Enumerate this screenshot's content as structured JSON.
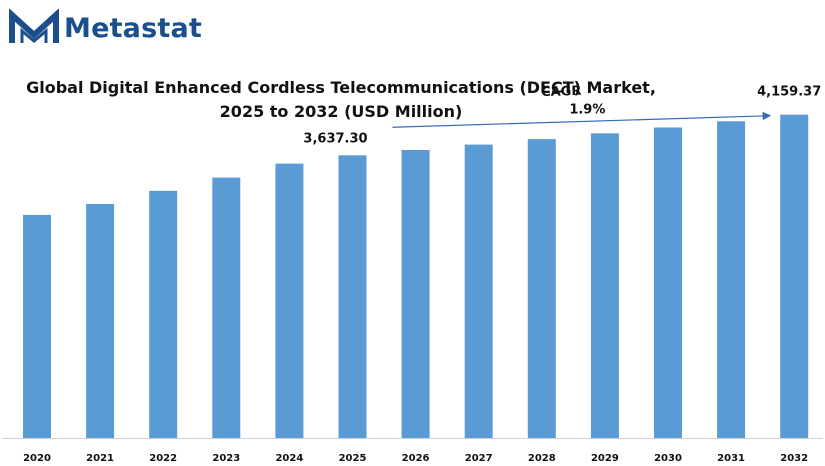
{
  "brand": {
    "name": "Metastat"
  },
  "title_line1": "Global Digital Enhanced Cordless Telecommunications (DECT) Market,",
  "title_line2": "2025 to 2032 (USD Million)",
  "colors": {
    "bar": "#5b9bd5",
    "brand": "#1a4f8b",
    "arrow": "#2e6db4"
  },
  "chart_data": {
    "type": "bar",
    "title": "Global Digital Enhanced Cordless Telecommunications (DECT) Market, 2025 to 2032 (USD Million)",
    "categories": [
      "2020",
      "2021",
      "2022",
      "2023",
      "2024",
      "2025",
      "2026",
      "2027",
      "2028",
      "2029",
      "2030",
      "2031",
      "2032"
    ],
    "values": [
      2870,
      3010,
      3180,
      3350,
      3530,
      3637.3,
      3705,
      3775,
      3845,
      3920,
      3995,
      4075,
      4159.37
    ],
    "ylim": [
      0,
      4400
    ],
    "grid": false,
    "data_labels": [
      {
        "category": "2025",
        "text": "3,637.30"
      },
      {
        "category": "2032",
        "text": "4,159.37"
      }
    ],
    "annotations": [
      {
        "type": "cagr_arrow",
        "label": "CAGR",
        "value": "1.9%"
      }
    ]
  }
}
